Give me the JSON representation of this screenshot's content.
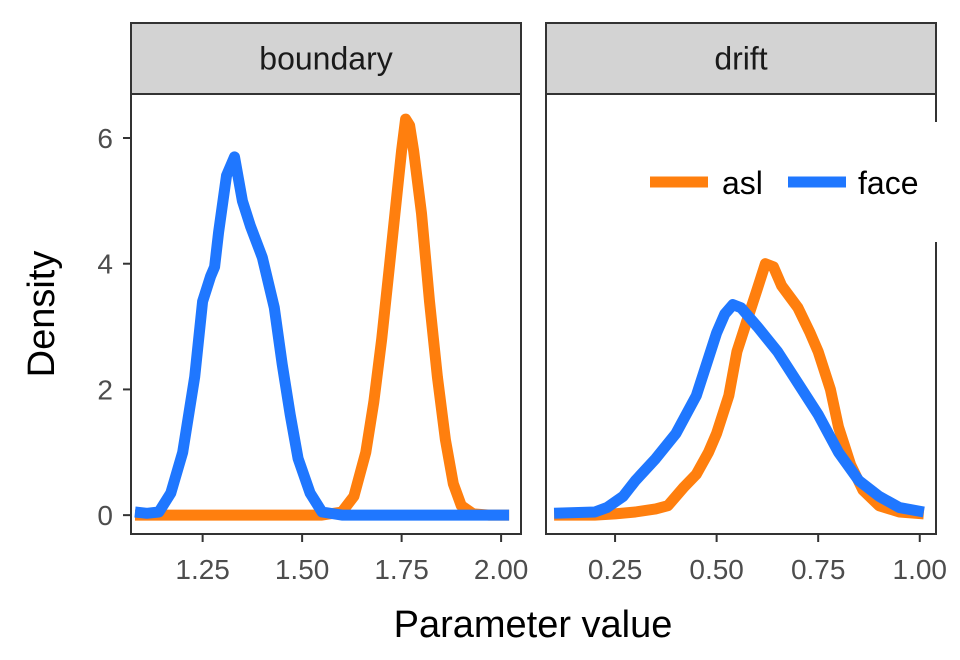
{
  "chart_data": {
    "type": "line",
    "subtype": "faceted-density",
    "xlabel": "Parameter value",
    "ylabel": "Density",
    "colors": {
      "asl": "#ff7f0e",
      "face": "#1f77ff"
    },
    "legend": {
      "placement": "top-right inside drift panel",
      "entries": [
        {
          "name": "asl",
          "color": "#ff7f0e"
        },
        {
          "name": "face",
          "color": "#1f77ff"
        }
      ]
    },
    "y_ticks": [
      0,
      2,
      4,
      6
    ],
    "y_tick_labels": [
      "0",
      "2",
      "4",
      "6"
    ],
    "ylim": [
      -0.3,
      6.7
    ],
    "panels": [
      {
        "title": "boundary",
        "xlim": [
          1.07,
          2.05
        ],
        "x_ticks": [
          1.25,
          1.5,
          1.75,
          2.0
        ],
        "x_tick_labels": [
          "1.25",
          "1.50",
          "1.75",
          "2.00"
        ],
        "series": [
          {
            "name": "asl",
            "points": [
              [
                1.08,
                0
              ],
              [
                1.2,
                0
              ],
              [
                1.3,
                0
              ],
              [
                1.4,
                0
              ],
              [
                1.5,
                0
              ],
              [
                1.55,
                0
              ],
              [
                1.6,
                0.05
              ],
              [
                1.63,
                0.3
              ],
              [
                1.66,
                1.0
              ],
              [
                1.68,
                1.8
              ],
              [
                1.7,
                2.8
              ],
              [
                1.72,
                4.0
              ],
              [
                1.74,
                5.2
              ],
              [
                1.75,
                5.8
              ],
              [
                1.76,
                6.3
              ],
              [
                1.77,
                6.2
              ],
              [
                1.78,
                5.8
              ],
              [
                1.8,
                4.8
              ],
              [
                1.82,
                3.4
              ],
              [
                1.84,
                2.2
              ],
              [
                1.86,
                1.2
              ],
              [
                1.88,
                0.5
              ],
              [
                1.9,
                0.15
              ],
              [
                1.93,
                0.02
              ],
              [
                1.97,
                0
              ],
              [
                2.02,
                0
              ]
            ]
          },
          {
            "name": "face",
            "points": [
              [
                1.08,
                0.05
              ],
              [
                1.11,
                0.03
              ],
              [
                1.14,
                0.05
              ],
              [
                1.17,
                0.35
              ],
              [
                1.2,
                1.0
              ],
              [
                1.23,
                2.2
              ],
              [
                1.25,
                3.4
              ],
              [
                1.27,
                3.8
              ],
              [
                1.28,
                3.95
              ],
              [
                1.29,
                4.5
              ],
              [
                1.31,
                5.4
              ],
              [
                1.33,
                5.7
              ],
              [
                1.35,
                5.0
              ],
              [
                1.37,
                4.6
              ],
              [
                1.4,
                4.1
              ],
              [
                1.43,
                3.3
              ],
              [
                1.45,
                2.4
              ],
              [
                1.47,
                1.6
              ],
              [
                1.49,
                0.9
              ],
              [
                1.52,
                0.35
              ],
              [
                1.55,
                0.05
              ],
              [
                1.6,
                0
              ],
              [
                1.7,
                0
              ],
              [
                1.8,
                0
              ],
              [
                1.9,
                0
              ],
              [
                2.02,
                0
              ]
            ]
          }
        ]
      },
      {
        "title": "drift",
        "xlim": [
          0.08,
          1.04
        ],
        "x_ticks": [
          0.25,
          0.5,
          0.75,
          1.0
        ],
        "x_tick_labels": [
          "0.25",
          "0.50",
          "0.75",
          "1.00"
        ],
        "series": [
          {
            "name": "asl",
            "points": [
              [
                0.1,
                0
              ],
              [
                0.2,
                0
              ],
              [
                0.25,
                0.02
              ],
              [
                0.3,
                0.05
              ],
              [
                0.35,
                0.1
              ],
              [
                0.38,
                0.15
              ],
              [
                0.42,
                0.45
              ],
              [
                0.45,
                0.65
              ],
              [
                0.48,
                1.0
              ],
              [
                0.5,
                1.3
              ],
              [
                0.53,
                1.9
              ],
              [
                0.55,
                2.6
              ],
              [
                0.58,
                3.2
              ],
              [
                0.6,
                3.6
              ],
              [
                0.62,
                4.0
              ],
              [
                0.64,
                3.95
              ],
              [
                0.66,
                3.65
              ],
              [
                0.7,
                3.3
              ],
              [
                0.73,
                2.9
              ],
              [
                0.75,
                2.6
              ],
              [
                0.78,
                2.0
              ],
              [
                0.8,
                1.4
              ],
              [
                0.83,
                0.8
              ],
              [
                0.86,
                0.4
              ],
              [
                0.9,
                0.15
              ],
              [
                0.95,
                0.05
              ],
              [
                1.01,
                0.02
              ]
            ]
          },
          {
            "name": "face",
            "points": [
              [
                0.1,
                0.03
              ],
              [
                0.2,
                0.05
              ],
              [
                0.23,
                0.12
              ],
              [
                0.27,
                0.3
              ],
              [
                0.3,
                0.55
              ],
              [
                0.35,
                0.9
              ],
              [
                0.4,
                1.3
              ],
              [
                0.45,
                1.9
              ],
              [
                0.48,
                2.5
              ],
              [
                0.5,
                2.9
              ],
              [
                0.52,
                3.2
              ],
              [
                0.54,
                3.35
              ],
              [
                0.56,
                3.3
              ],
              [
                0.6,
                3.0
              ],
              [
                0.65,
                2.6
              ],
              [
                0.7,
                2.1
              ],
              [
                0.75,
                1.6
              ],
              [
                0.8,
                1.0
              ],
              [
                0.85,
                0.55
              ],
              [
                0.9,
                0.3
              ],
              [
                0.95,
                0.12
              ],
              [
                1.01,
                0.05
              ]
            ]
          }
        ]
      }
    ]
  }
}
